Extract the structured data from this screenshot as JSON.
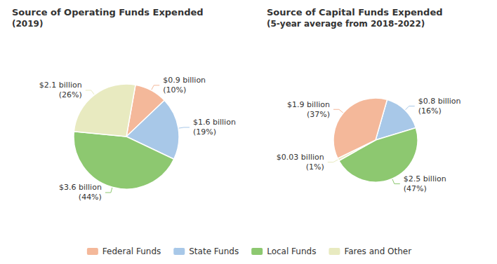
{
  "chart_data": [
    {
      "type": "pie",
      "title": "Source of Operating Funds Expended",
      "subtitle": "(2019)",
      "categories": [
        "Federal Funds",
        "State Funds",
        "Local Funds",
        "Fares and Other"
      ],
      "values": [
        10,
        19,
        44,
        26
      ],
      "value_labels": [
        "$0.9 billion\n(10%)",
        "$1.6 billion\n(19%)",
        "$3.6 billion\n(44%)",
        "$2.1 billion\n(26%)"
      ],
      "colors": [
        "#F4B89A",
        "#A8C8E8",
        "#8DC870",
        "#E8EAC0"
      ],
      "data_labels": true,
      "legend": "bottom"
    },
    {
      "type": "pie",
      "title": "Source of Capital Funds Expended",
      "subtitle": "(5-year average from 2018-2022)",
      "categories": [
        "State Funds",
        "Local Funds",
        "Fares and Other",
        "Federal Funds"
      ],
      "values": [
        16,
        47,
        1,
        37
      ],
      "value_labels": [
        "$0.8 billion\n(16%)",
        "$2.5 billion\n(47%)",
        "$0.03 billion\n(1%)",
        "$1.9 billion\n(37%)"
      ],
      "colors": [
        "#A8C8E8",
        "#8DC870",
        "#E8EAC0",
        "#F4B89A"
      ],
      "data_labels": true,
      "legend": "bottom"
    }
  ]
}
